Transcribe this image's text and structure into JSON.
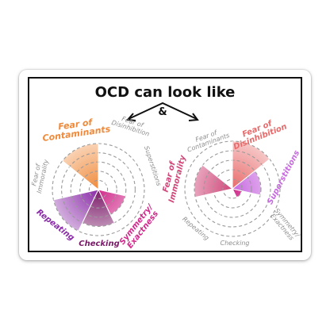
{
  "title": "OCD can look like",
  "connector": "&",
  "colors": {
    "frame": "#111111",
    "grid": "#9a9a9a",
    "contaminants": "#f08a3a",
    "disinhibition": "#e86a6a",
    "superstitions": "#c86ae0",
    "symmetry": "#d02a8a",
    "checking": "#7a1a68",
    "repeating": "#8a2aa8",
    "immorality": "#d0487a",
    "muted_label": "#8f8f8f"
  },
  "chart_data": [
    {
      "type": "polar-area",
      "rings": 5,
      "categories": [
        "Fear of Disinhibition",
        "Superstitions",
        "Symmetry/ Exactness",
        "Checking",
        "Repeating",
        "Fear of Immorality",
        "Fear of Contaminants"
      ],
      "values": [
        0,
        0,
        3,
        4,
        5,
        0,
        5
      ],
      "highlighted": [
        "Fear of Contaminants",
        "Repeating",
        "Checking",
        "Symmetry/ Exactness"
      ]
    },
    {
      "type": "polar-area",
      "rings": 5,
      "categories": [
        "Fear of Contaminants",
        "Fear of Disinhibition",
        "Superstitions",
        "Symmetry/ Exactness",
        "Checking",
        "Repeating",
        "Fear of Immorality"
      ],
      "values": [
        0,
        5,
        3,
        1,
        0,
        0,
        4
      ],
      "highlighted": [
        "Fear of Disinhibition",
        "Superstitions",
        "Fear of Immorality"
      ]
    }
  ]
}
